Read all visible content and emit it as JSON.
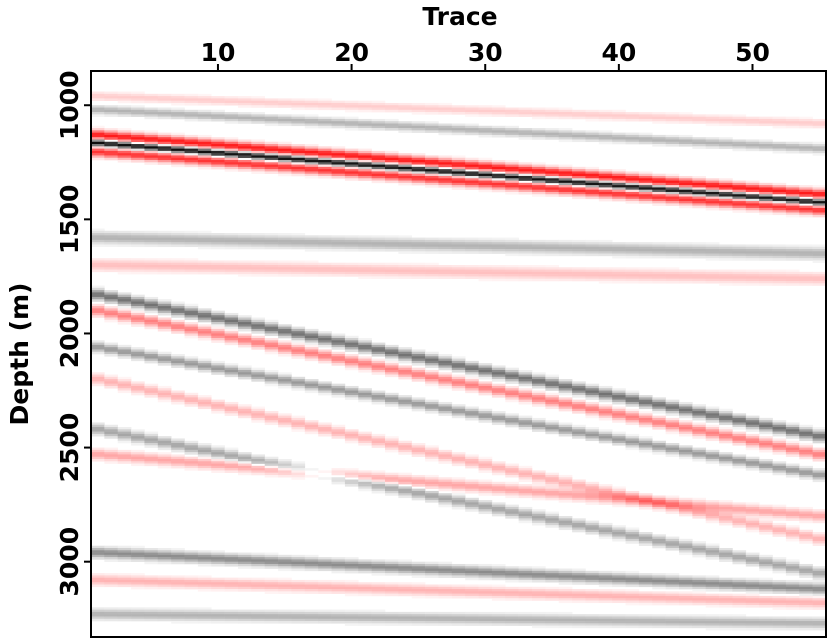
{
  "chart_data": {
    "type": "heatmap",
    "title": "",
    "xlabel": "Trace",
    "ylabel": "Depth (m)",
    "x_axis_position": "top",
    "xlim": [
      1,
      55
    ],
    "ylim": [
      3330,
      850
    ],
    "y_inverted": true,
    "xticks": [
      10,
      20,
      30,
      40,
      50
    ],
    "yticks": [
      1000,
      1500,
      2000,
      2500,
      3000
    ],
    "grid": false,
    "legend": "none",
    "colormap": {
      "negative": "#ff0000",
      "zero": "#ffffff",
      "positive": "#000000"
    },
    "reflectors": [
      {
        "depth_start": 1165,
        "depth_end": 1425,
        "amplitude": 1.0,
        "width_m": 14
      },
      {
        "depth_start": 1130,
        "depth_end": 1390,
        "amplitude": -0.9,
        "width_m": 20
      },
      {
        "depth_start": 1205,
        "depth_end": 1460,
        "amplitude": -0.8,
        "width_m": 20
      },
      {
        "depth_start": 1020,
        "depth_end": 1190,
        "amplitude": 0.3,
        "width_m": 18
      },
      {
        "depth_start": 960,
        "depth_end": 1080,
        "amplitude": -0.2,
        "width_m": 18
      },
      {
        "depth_start": 1580,
        "depth_end": 1650,
        "amplitude": 0.3,
        "width_m": 25
      },
      {
        "depth_start": 1700,
        "depth_end": 1760,
        "amplitude": -0.25,
        "width_m": 25
      },
      {
        "depth_start": 1830,
        "depth_end": 2450,
        "amplitude": 0.55,
        "width_m": 22
      },
      {
        "depth_start": 1900,
        "depth_end": 2530,
        "amplitude": -0.5,
        "width_m": 22
      },
      {
        "depth_start": 2060,
        "depth_end": 2620,
        "amplitude": 0.4,
        "width_m": 20
      },
      {
        "depth_start": 2200,
        "depth_end": 2900,
        "amplitude": -0.3,
        "width_m": 22
      },
      {
        "depth_start": 2420,
        "depth_end": 3050,
        "amplitude": 0.35,
        "width_m": 22
      },
      {
        "depth_start": 2530,
        "depth_end": 2800,
        "amplitude": -0.35,
        "width_m": 22
      },
      {
        "depth_start": 2960,
        "depth_end": 3120,
        "amplitude": 0.45,
        "width_m": 22
      },
      {
        "depth_start": 3080,
        "depth_end": 3180,
        "amplitude": -0.3,
        "width_m": 22
      },
      {
        "depth_start": 3230,
        "depth_end": 3270,
        "amplitude": 0.3,
        "width_m": 22
      }
    ]
  }
}
